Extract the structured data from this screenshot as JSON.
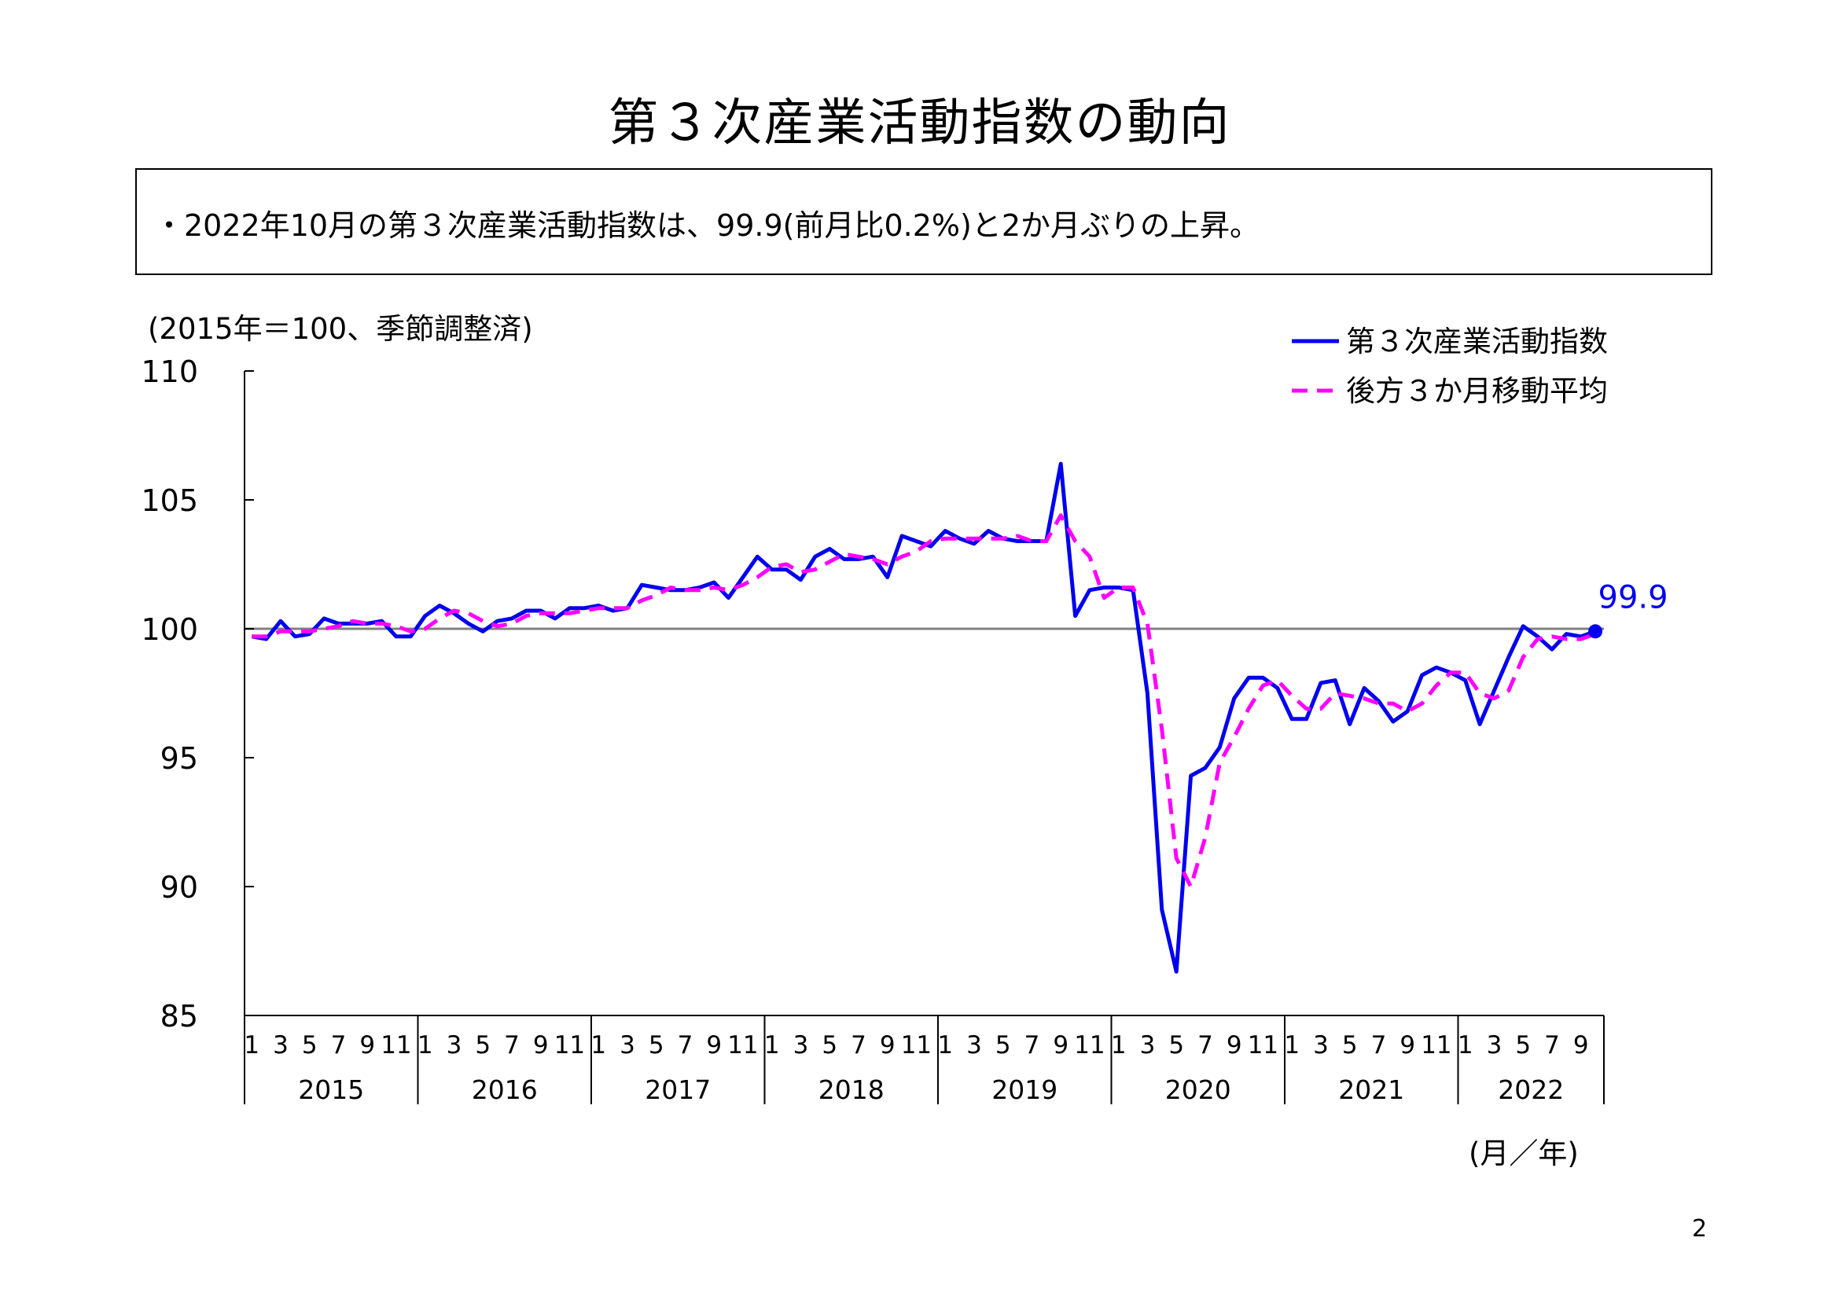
{
  "title": "第３次産業活動指数の動向",
  "summary": "・2022年10月の第３次産業活動指数は、99.9(前月比0.2%)と2か月ぶりの上昇。",
  "unit_note": "(2015年＝100、季節調整済)",
  "page_number": "2",
  "colors": {
    "index_line": "#0000ee",
    "moving_avg": "#ff00ff",
    "reference": "#808080",
    "axis": "#000000"
  },
  "chart_data": {
    "type": "line",
    "x_unit_label": "(月／年)",
    "ylim": [
      85,
      110
    ],
    "y_ticks": [
      85,
      90,
      95,
      100,
      105,
      110
    ],
    "reference_line": 100,
    "years": [
      "2015",
      "2016",
      "2017",
      "2018",
      "2019",
      "2020",
      "2021",
      "2022"
    ],
    "month_ticks": [
      "1",
      "3",
      "5",
      "7",
      "9",
      "11"
    ],
    "latest_label": "99.9",
    "legend_position": "top-right",
    "series": [
      {
        "name": "第３次産業活動指数",
        "style": "solid",
        "values": [
          99.7,
          99.6,
          100.3,
          99.7,
          99.8,
          100.4,
          100.2,
          100.2,
          100.2,
          100.3,
          99.7,
          99.7,
          100.5,
          100.9,
          100.6,
          100.2,
          99.9,
          100.3,
          100.4,
          100.7,
          100.7,
          100.4,
          100.8,
          100.8,
          100.9,
          100.7,
          100.8,
          101.7,
          101.6,
          101.5,
          101.5,
          101.6,
          101.8,
          101.2,
          102.0,
          102.8,
          102.3,
          102.3,
          101.9,
          102.8,
          103.1,
          102.7,
          102.7,
          102.8,
          102.0,
          103.6,
          103.4,
          103.2,
          103.8,
          103.5,
          103.3,
          103.8,
          103.5,
          103.4,
          103.4,
          103.4,
          106.4,
          100.5,
          101.5,
          101.6,
          101.6,
          101.5,
          97.5,
          89.1,
          86.7,
          94.3,
          94.6,
          95.4,
          97.3,
          98.1,
          98.1,
          97.7,
          96.5,
          96.5,
          97.9,
          98.0,
          96.3,
          97.7,
          97.2,
          96.4,
          96.8,
          98.2,
          98.5,
          98.3,
          98.0,
          96.3,
          97.6,
          98.9,
          100.1,
          99.7,
          99.2,
          99.8,
          99.7,
          99.9
        ]
      },
      {
        "name": "後方３か月移動平均",
        "style": "dashed",
        "values": [
          99.7,
          99.7,
          99.9,
          99.9,
          99.9,
          100.0,
          100.1,
          100.3,
          100.2,
          100.2,
          100.1,
          99.9,
          100.0,
          100.4,
          100.7,
          100.6,
          100.3,
          100.1,
          100.2,
          100.5,
          100.6,
          100.6,
          100.6,
          100.7,
          100.8,
          100.8,
          100.8,
          101.1,
          101.3,
          101.6,
          101.5,
          101.5,
          101.6,
          101.5,
          101.7,
          102.0,
          102.4,
          102.5,
          102.2,
          102.3,
          102.6,
          102.9,
          102.8,
          102.7,
          102.5,
          102.8,
          103.0,
          103.4,
          103.5,
          103.5,
          103.5,
          103.5,
          103.5,
          103.6,
          103.4,
          103.4,
          104.4,
          103.4,
          102.8,
          101.2,
          101.6,
          101.6,
          100.2,
          96.1,
          91.1,
          90.0,
          91.9,
          94.8,
          95.8,
          96.9,
          97.8,
          98.0,
          97.4,
          96.9,
          96.9,
          97.5,
          97.4,
          97.3,
          97.1,
          97.1,
          96.8,
          97.1,
          97.8,
          98.3,
          98.3,
          97.5,
          97.3,
          97.6,
          98.9,
          99.6,
          99.7,
          99.6,
          99.6,
          99.8
        ]
      }
    ]
  }
}
